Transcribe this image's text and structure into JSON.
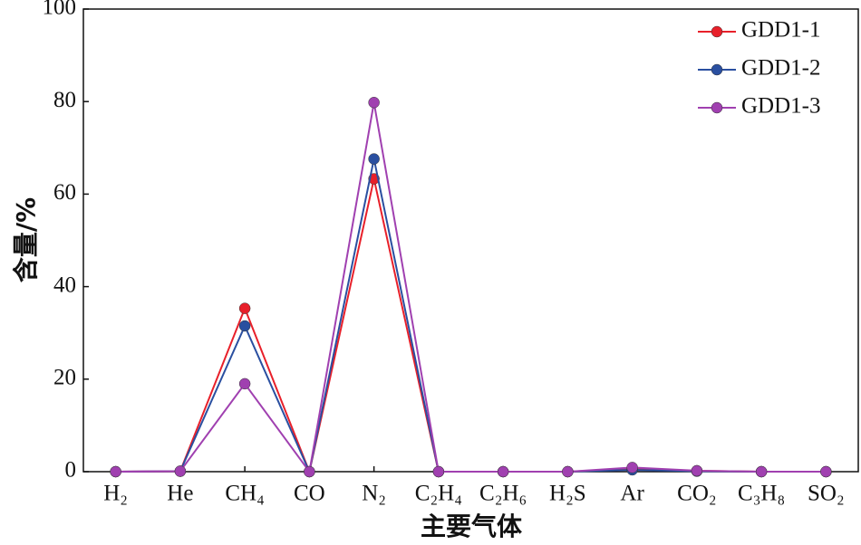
{
  "chart_data": {
    "type": "line",
    "x_label": "主要气体",
    "y_label": "含量/%",
    "categories": [
      "H₂",
      "He",
      "CH₄",
      "CO",
      "N₂",
      "C₂H₄",
      "C₂H₆",
      "H₂S",
      "Ar",
      "CO₂",
      "C₃H₈",
      "SO₂"
    ],
    "series": [
      {
        "name": "GDD1-1",
        "color": "#e8202a",
        "values": [
          0,
          0.1,
          35.3,
          0,
          63.3,
          0,
          0,
          0,
          0.6,
          0.2,
          0,
          0
        ]
      },
      {
        "name": "GDD1-2",
        "color": "#2a4fa0",
        "values": [
          0,
          0.1,
          31.5,
          0,
          67.6,
          0,
          0,
          0,
          0.4,
          0.1,
          0,
          0
        ]
      },
      {
        "name": "GDD1-3",
        "color": "#a040b0",
        "values": [
          0,
          0.1,
          19,
          0,
          79.8,
          0,
          0,
          0,
          0.9,
          0.2,
          0,
          0
        ]
      }
    ],
    "ylim": [
      0,
      100
    ],
    "yticks": [
      0,
      20,
      40,
      60,
      80,
      100
    ],
    "legend": "upper right"
  }
}
